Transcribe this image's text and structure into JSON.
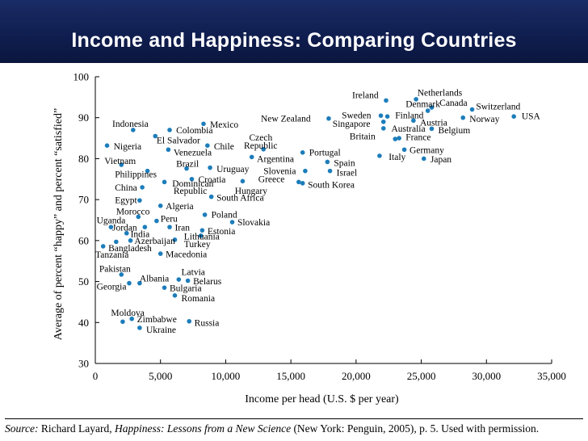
{
  "header": {
    "title": "Income and Happiness: Comparing Countries"
  },
  "source": {
    "label": "Source:",
    "author": " Richard Layard, ",
    "book": "Happiness: Lessons from a New Science",
    "rest": " (New York: Penguin, 2005), p. 5. Used with permission."
  },
  "colors": {
    "banner": "#13235a",
    "point": "#1d7dbb",
    "text": "#000000"
  },
  "chart_data": {
    "type": "scatter",
    "title": "Income and Happiness: Comparing Countries",
    "xlabel": "Income per head (U.S. $ per year)",
    "ylabel": "Average of percent “happy” and percent “satisfied”",
    "xlim": [
      0,
      35000
    ],
    "ylim": [
      30,
      100
    ],
    "xticks": [
      0,
      5000,
      10000,
      15000,
      20000,
      25000,
      30000,
      35000
    ],
    "xtick_labels": [
      "0",
      "5,000",
      "10,000",
      "15,000",
      "20,000",
      "25,000",
      "30,000",
      "35,000"
    ],
    "yticks": [
      30,
      40,
      50,
      60,
      70,
      80,
      90,
      100
    ],
    "ytick_labels": [
      "30",
      "40",
      "50",
      "60",
      "70",
      "80",
      "90",
      "100"
    ],
    "grid": false,
    "points": [
      {
        "name": "Netherlands",
        "x": 24600,
        "y": 94.5
      },
      {
        "name": "Ireland",
        "x": 22300,
        "y": 94.2
      },
      {
        "name": "Denmark",
        "x": 25500,
        "y": 91.7
      },
      {
        "name": "Canada",
        "x": 25800,
        "y": 92.5
      },
      {
        "name": "Switzerland",
        "x": 28900,
        "y": 92.0
      },
      {
        "name": "Sweden",
        "x": 21900,
        "y": 90.5
      },
      {
        "name": "Finland",
        "x": 22400,
        "y": 90.3
      },
      {
        "name": "USA",
        "x": 32100,
        "y": 90.3
      },
      {
        "name": "Norway",
        "x": 28200,
        "y": 90.0
      },
      {
        "name": "New Zealand",
        "x": 17900,
        "y": 89.8
      },
      {
        "name": "Singapore",
        "x": 22100,
        "y": 89.0
      },
      {
        "name": "Austria",
        "x": 24400,
        "y": 89.3
      },
      {
        "name": "Australia",
        "x": 22100,
        "y": 87.4
      },
      {
        "name": "Belgium",
        "x": 25800,
        "y": 87.3
      },
      {
        "name": "Britain",
        "x": 23000,
        "y": 84.8
      },
      {
        "name": "France",
        "x": 23300,
        "y": 85.0
      },
      {
        "name": "Germany",
        "x": 23700,
        "y": 82.2
      },
      {
        "name": "Italy",
        "x": 21800,
        "y": 80.7
      },
      {
        "name": "Japan",
        "x": 25200,
        "y": 80.0
      },
      {
        "name": "Portugal",
        "x": 15900,
        "y": 81.5
      },
      {
        "name": "Spain",
        "x": 17800,
        "y": 79.2
      },
      {
        "name": "Israel",
        "x": 18000,
        "y": 77.0
      },
      {
        "name": "Slovenia",
        "x": 16100,
        "y": 77.0
      },
      {
        "name": "Greece",
        "x": 15600,
        "y": 74.3
      },
      {
        "name": "South Korea",
        "x": 15900,
        "y": 74.0
      },
      {
        "name": "Czech Republic",
        "x": 12900,
        "y": 82.3
      },
      {
        "name": "Argentina",
        "x": 12000,
        "y": 80.4
      },
      {
        "name": "Hungary",
        "x": 11300,
        "y": 74.5
      },
      {
        "name": "Mexico",
        "x": 8300,
        "y": 88.5
      },
      {
        "name": "Chile",
        "x": 8600,
        "y": 83.2
      },
      {
        "name": "Uruguay",
        "x": 8800,
        "y": 77.8
      },
      {
        "name": "South Africa",
        "x": 8900,
        "y": 70.7
      },
      {
        "name": "Croatia",
        "x": 7400,
        "y": 75.0
      },
      {
        "name": "Brazil",
        "x": 7000,
        "y": 77.6
      },
      {
        "name": "Dominican Republic",
        "x": 5300,
        "y": 74.3
      },
      {
        "name": "Colombia",
        "x": 5700,
        "y": 87.0
      },
      {
        "name": "El Salvador",
        "x": 4600,
        "y": 85.5
      },
      {
        "name": "Venezuela",
        "x": 5600,
        "y": 82.2
      },
      {
        "name": "Indonesia",
        "x": 2900,
        "y": 87.0
      },
      {
        "name": "Nigeria",
        "x": 900,
        "y": 83.2
      },
      {
        "name": "Vietnam",
        "x": 2000,
        "y": 78.5
      },
      {
        "name": "Philippines",
        "x": 4000,
        "y": 77.0
      },
      {
        "name": "China",
        "x": 3600,
        "y": 73.0
      },
      {
        "name": "Egypt",
        "x": 3400,
        "y": 69.8
      },
      {
        "name": "Algeria",
        "x": 5000,
        "y": 68.5
      },
      {
        "name": "Poland",
        "x": 8400,
        "y": 66.3
      },
      {
        "name": "Slovakia",
        "x": 10500,
        "y": 64.5
      },
      {
        "name": "Estonia",
        "x": 8200,
        "y": 62.5
      },
      {
        "name": "Lithuania",
        "x": 8100,
        "y": 61.2
      },
      {
        "name": "Turkey",
        "x": 6100,
        "y": 60.2
      },
      {
        "name": "Macedonia",
        "x": 5000,
        "y": 56.8
      },
      {
        "name": "Morocco",
        "x": 3300,
        "y": 65.8
      },
      {
        "name": "Peru",
        "x": 4700,
        "y": 64.8
      },
      {
        "name": "Uganda",
        "x": 1200,
        "y": 63.3
      },
      {
        "name": "Jordan",
        "x": 3800,
        "y": 63.3
      },
      {
        "name": "Iran",
        "x": 5700,
        "y": 63.3
      },
      {
        "name": "India",
        "x": 2400,
        "y": 61.8
      },
      {
        "name": "Azerbaijan",
        "x": 2700,
        "y": 60.0
      },
      {
        "name": "Bangladesh",
        "x": 1600,
        "y": 59.7
      },
      {
        "name": "Tanzania",
        "x": 600,
        "y": 58.6
      },
      {
        "name": "Pakistan",
        "x": 2000,
        "y": 51.7
      },
      {
        "name": "Albania",
        "x": 3400,
        "y": 49.6
      },
      {
        "name": "Georgia",
        "x": 2600,
        "y": 49.6
      },
      {
        "name": "Latvia",
        "x": 6400,
        "y": 50.5
      },
      {
        "name": "Belarus",
        "x": 7100,
        "y": 50.2
      },
      {
        "name": "Bulgaria",
        "x": 5300,
        "y": 48.5
      },
      {
        "name": "Romania",
        "x": 6100,
        "y": 46.6
      },
      {
        "name": "Moldova",
        "x": 2100,
        "y": 40.2
      },
      {
        "name": "Zimbabwe",
        "x": 2800,
        "y": 40.9
      },
      {
        "name": "Ukraine",
        "x": 3400,
        "y": 38.7
      },
      {
        "name": "Russia",
        "x": 7200,
        "y": 40.3
      }
    ],
    "labels": [
      {
        "text": "Netherlands",
        "x": 24700,
        "y": 96.2
      },
      {
        "text": "Ireland",
        "x": 19700,
        "y": 95.6
      },
      {
        "text": "Denmark",
        "x": 23800,
        "y": 93.4
      },
      {
        "text": "Canada",
        "x": 26400,
        "y": 93.7
      },
      {
        "text": "Switzerland",
        "x": 29200,
        "y": 92.8
      },
      {
        "text": "Sweden",
        "x": 18900,
        "y": 90.6
      },
      {
        "text": "Finland",
        "x": 23000,
        "y": 90.6
      },
      {
        "text": "USA",
        "x": 32700,
        "y": 90.4
      },
      {
        "text": "Norway",
        "x": 28700,
        "y": 89.7
      },
      {
        "text": "New Zealand",
        "x": 12700,
        "y": 89.8
      },
      {
        "text": "Singapore",
        "x": 18200,
        "y": 88.6
      },
      {
        "text": "Austria",
        "x": 24900,
        "y": 88.9
      },
      {
        "text": "Australia",
        "x": 22700,
        "y": 87.4
      },
      {
        "text": "Belgium",
        "x": 26300,
        "y": 87.0
      },
      {
        "text": "Britain",
        "x": 19500,
        "y": 85.5
      },
      {
        "text": "France",
        "x": 23800,
        "y": 85.3
      },
      {
        "text": "Germany",
        "x": 24100,
        "y": 82.2
      },
      {
        "text": "Italy",
        "x": 22500,
        "y": 80.5
      },
      {
        "text": "Japan",
        "x": 25700,
        "y": 79.9
      },
      {
        "text": "Portugal",
        "x": 16400,
        "y": 81.6
      },
      {
        "text": "Spain",
        "x": 18300,
        "y": 79.0
      },
      {
        "text": "Israel",
        "x": 18500,
        "y": 76.6
      },
      {
        "text": "Slovenia",
        "x": 12900,
        "y": 77.0
      },
      {
        "text": "Greece",
        "x": 12500,
        "y": 75.1
      },
      {
        "text": "South Korea",
        "x": 16300,
        "y": 73.7
      },
      {
        "text": "Czech",
        "x": 11800,
        "y": 85.2
      },
      {
        "text": "Republic",
        "x": 11400,
        "y": 83.2
      },
      {
        "text": "Argentina",
        "x": 12400,
        "y": 80.0
      },
      {
        "text": "Hungary",
        "x": 10700,
        "y": 72.2
      },
      {
        "text": "Mexico",
        "x": 8800,
        "y": 88.4
      },
      {
        "text": "Chile",
        "x": 9100,
        "y": 83.0
      },
      {
        "text": "Uruguay",
        "x": 9300,
        "y": 77.5
      },
      {
        "text": "South Africa",
        "x": 9300,
        "y": 70.5
      },
      {
        "text": "Croatia",
        "x": 7900,
        "y": 75.0
      },
      {
        "text": "Brazil",
        "x": 6200,
        "y": 78.8
      },
      {
        "text": "Dominican",
        "x": 5900,
        "y": 74.0
      },
      {
        "text": "Republic",
        "x": 6000,
        "y": 72.2
      },
      {
        "text": "Colombia",
        "x": 6200,
        "y": 87.0
      },
      {
        "text": "El Salvador",
        "x": 4700,
        "y": 84.5
      },
      {
        "text": "Venezuela",
        "x": 6000,
        "y": 81.6
      },
      {
        "text": "Indonesia",
        "x": 1300,
        "y": 88.6
      },
      {
        "text": "Nigeria",
        "x": 1400,
        "y": 83.0
      },
      {
        "text": "Vietnam",
        "x": 700,
        "y": 79.5
      },
      {
        "text": "Philippines",
        "x": 1500,
        "y": 76.2
      },
      {
        "text": "China",
        "x": 1500,
        "y": 73.0
      },
      {
        "text": "Egypt",
        "x": 1500,
        "y": 69.9
      },
      {
        "text": "Algeria",
        "x": 5400,
        "y": 68.5
      },
      {
        "text": "Poland",
        "x": 8900,
        "y": 66.4
      },
      {
        "text": "Slovakia",
        "x": 10900,
        "y": 64.5
      },
      {
        "text": "Estonia",
        "x": 8600,
        "y": 62.3
      },
      {
        "text": "Lithuania",
        "x": 6800,
        "y": 61.1
      },
      {
        "text": "Turkey",
        "x": 6800,
        "y": 59.2
      },
      {
        "text": "Macedonia",
        "x": 5400,
        "y": 56.7
      },
      {
        "text": "Morocco",
        "x": 1600,
        "y": 67.2
      },
      {
        "text": "Peru",
        "x": 5000,
        "y": 65.4
      },
      {
        "text": "Uganda",
        "x": 100,
        "y": 65.0
      },
      {
        "text": "Jordan",
        "x": 1300,
        "y": 63.2
      },
      {
        "text": "Iran",
        "x": 6100,
        "y": 63.2
      },
      {
        "text": "India",
        "x": 2700,
        "y": 61.6
      },
      {
        "text": "Azerbaijan",
        "x": 3000,
        "y": 60.0
      },
      {
        "text": "Bangladesh",
        "x": 1000,
        "y": 58.2
      },
      {
        "text": "Tanzania",
        "x": 0,
        "y": 56.6
      },
      {
        "text": "Pakistan",
        "x": 300,
        "y": 53.2
      },
      {
        "text": "Albania",
        "x": 3400,
        "y": 50.8
      },
      {
        "text": "Georgia",
        "x": 100,
        "y": 48.8
      },
      {
        "text": "Latvia",
        "x": 6600,
        "y": 52.4
      },
      {
        "text": "Belarus",
        "x": 7500,
        "y": 50.1
      },
      {
        "text": "Bulgaria",
        "x": 5700,
        "y": 48.4
      },
      {
        "text": "Romania",
        "x": 6600,
        "y": 46.0
      },
      {
        "text": "Moldova",
        "x": 1200,
        "y": 42.4
      },
      {
        "text": "Zimbabwe",
        "x": 3200,
        "y": 40.8
      },
      {
        "text": "Ukraine",
        "x": 3900,
        "y": 38.3
      },
      {
        "text": "Russia",
        "x": 7600,
        "y": 40.0
      }
    ]
  }
}
